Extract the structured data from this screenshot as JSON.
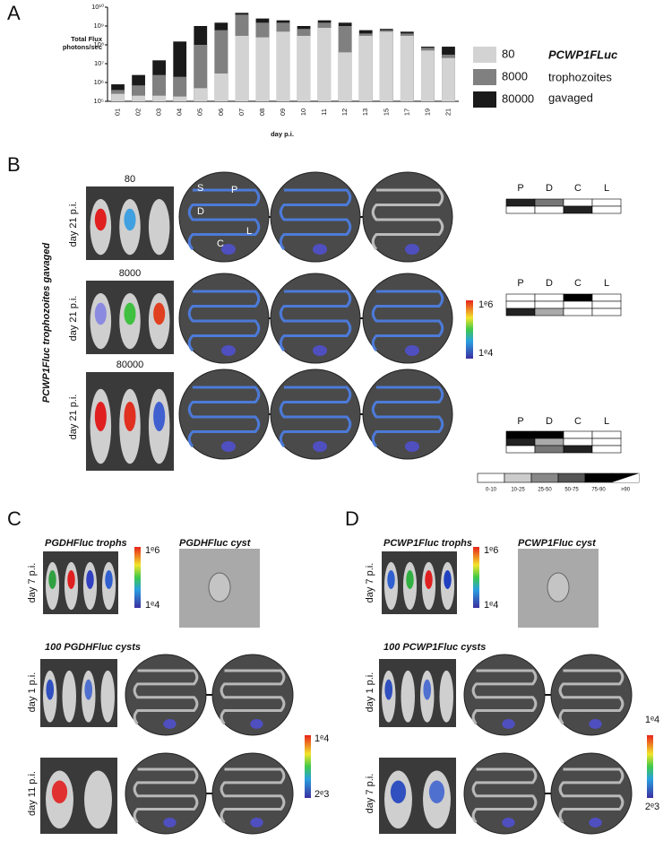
{
  "chart_data": {
    "type": "bar",
    "mode": "overlay",
    "log": true,
    "y_label": [
      "Total Flux",
      "photons/sec"
    ],
    "x_label": "day p.i.",
    "categories": [
      "01",
      "02",
      "03",
      "04",
      "05",
      "06",
      "07",
      "08",
      "09",
      "10",
      "11",
      "12",
      "13",
      "15",
      "17",
      "19",
      "21"
    ],
    "series": [
      {
        "name": "80",
        "color": "#d3d3d3",
        "values": [
          250000,
          200000,
          200000,
          180000,
          500000,
          3000000,
          300000000,
          250000000,
          500000000,
          300000000,
          800000000,
          40000000,
          300000000,
          500000000,
          300000000,
          50000000,
          20000000
        ]
      },
      {
        "name": "8000",
        "color": "#808080",
        "values": [
          400000,
          700000,
          2500000,
          2000000,
          100000000,
          600000000,
          4000000000,
          1500000000,
          1500000000,
          700000000,
          1500000000,
          1000000000,
          400000000,
          600000000,
          400000000,
          70000000,
          30000000
        ]
      },
      {
        "name": "80000",
        "color": "#1a1a1a",
        "values": [
          800000,
          2500000,
          15000000,
          150000000,
          1000000000,
          1500000000,
          5000000000,
          2500000000,
          2000000000,
          1000000000,
          2000000000,
          1500000000,
          600000000,
          700000000,
          500000000,
          80000000,
          80000000
        ]
      }
    ],
    "ylim": [
      100000,
      10000000000
    ],
    "yticks": [
      {
        "value": 100000,
        "label": "10⁵"
      },
      {
        "value": 1000000,
        "label": "10⁶"
      },
      {
        "value": 10000000,
        "label": "10⁷"
      },
      {
        "value": 100000000,
        "label": "10⁸"
      },
      {
        "value": 1000000000,
        "label": "10⁹"
      },
      {
        "value": 10000000000,
        "label": "10¹⁰"
      }
    ],
    "grid": false,
    "legend": "right",
    "legend_note": [
      "PCWP1FLuc",
      "trophozoites",
      "gavaged"
    ]
  },
  "figure": {
    "panel_labels": [
      "A",
      "B",
      "C",
      "D"
    ],
    "b": {
      "side_label": "PCWP1Fluc  trophozoites gavaged",
      "groups": [
        {
          "title": "80",
          "time": "day 21 p.i."
        },
        {
          "title": "8000",
          "time": "day 21 p.i."
        },
        {
          "title": "80000",
          "time": "day 21 p.i."
        }
      ],
      "gut_labels": [
        "S",
        "P",
        "D",
        "C",
        "L"
      ],
      "scale": [
        "1ᵉ6",
        "1ᵉ4"
      ],
      "tables": [
        [
          "P",
          "D",
          "C",
          "L"
        ],
        [
          "P",
          "D",
          "C",
          "L"
        ],
        [
          "P",
          "D",
          "C",
          "L"
        ]
      ],
      "legend": [
        "0-10",
        "10-25",
        "25-50",
        "50-75",
        "75-90",
        ">90"
      ]
    },
    "c": {
      "trophs": "PGDHFluc trophs",
      "cyst": "PGDHFluc cyst",
      "time": "day 7 p.i.",
      "scale": [
        "1ᵉ6",
        "1ᵉ4"
      ],
      "cysts": "100 PGDHFluc cysts",
      "times": [
        "day 1 p.i.",
        "day 11 p.i."
      ],
      "scale2": [
        "1ᵉ4",
        "2ᵉ3"
      ]
    },
    "d": {
      "trophs": "PCWP1Fluc trophs",
      "cyst": "PCWP1Fluc cyst",
      "time": "day 7 p.i.",
      "scale": [
        "1ᵉ6",
        "1ᵉ4"
      ],
      "cysts": "100 PCWP1Fluc cysts",
      "times": [
        "day 1 p.i.",
        "day 7 p.i."
      ],
      "scale2": [
        "1ᵉ4",
        "2ᵉ3"
      ]
    }
  }
}
